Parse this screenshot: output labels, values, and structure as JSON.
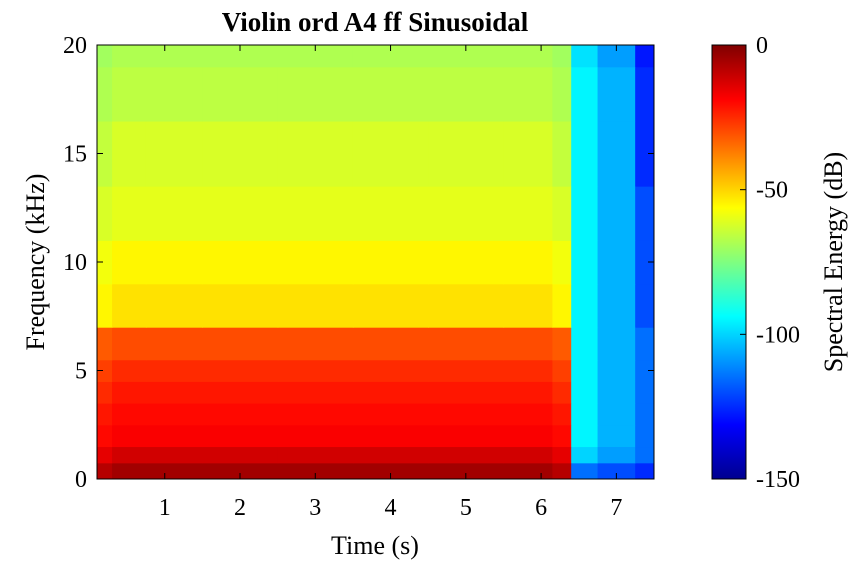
{
  "chart_data": {
    "type": "heatmap",
    "title": "Violin ord A4 ff Sinusoidal",
    "xlabel": "Time (s)",
    "ylabel": "Frequency (kHz)",
    "colorbar_label": "Spectral Energy (dB)",
    "colormap": "jet",
    "xlim": [
      0.1,
      7.5
    ],
    "ylim": [
      0,
      20
    ],
    "clim": [
      -150,
      0
    ],
    "x_ticks": [
      1,
      2,
      3,
      4,
      5,
      6,
      7
    ],
    "x_tick_labels": [
      "1",
      "2",
      "3",
      "4",
      "5",
      "6",
      "7"
    ],
    "y_ticks": [
      0,
      5,
      10,
      15,
      20
    ],
    "y_tick_labels": [
      "0",
      "5",
      "10",
      "15",
      "20"
    ],
    "c_ticks": [
      0,
      -50,
      -100,
      -150
    ],
    "c_tick_labels": [
      "0",
      "-50",
      "-100",
      "-150"
    ],
    "grid": false,
    "time_s": [
      0.1,
      0.5,
      1.0,
      2.0,
      3.0,
      4.0,
      5.0,
      6.0,
      6.3,
      6.5,
      7.0,
      7.5
    ],
    "frequency_khz": [
      0.5,
      1,
      2,
      3,
      4,
      5,
      6,
      8,
      10,
      12,
      15,
      18,
      20
    ],
    "energy_db": [
      [
        -8,
        -5,
        -5,
        -5,
        -5,
        -5,
        -5,
        -5,
        -8,
        -115,
        -120,
        -125
      ],
      [
        -15,
        -12,
        -12,
        -12,
        -12,
        -12,
        -12,
        -12,
        -15,
        -100,
        -108,
        -115
      ],
      [
        -20,
        -18,
        -18,
        -18,
        -18,
        -18,
        -18,
        -18,
        -20,
        -95,
        -105,
        -115
      ],
      [
        -22,
        -20,
        -20,
        -20,
        -20,
        -20,
        -20,
        -20,
        -22,
        -95,
        -105,
        -115
      ],
      [
        -25,
        -22,
        -22,
        -22,
        -22,
        -22,
        -22,
        -22,
        -25,
        -95,
        -105,
        -115
      ],
      [
        -28,
        -25,
        -25,
        -25,
        -25,
        -25,
        -25,
        -25,
        -28,
        -95,
        -105,
        -115
      ],
      [
        -32,
        -30,
        -30,
        -30,
        -30,
        -30,
        -30,
        -30,
        -32,
        -95,
        -105,
        -115
      ],
      [
        -55,
        -52,
        -52,
        -52,
        -52,
        -52,
        -52,
        -52,
        -55,
        -95,
        -105,
        -120
      ],
      [
        -58,
        -55,
        -55,
        -55,
        -55,
        -55,
        -55,
        -55,
        -58,
        -95,
        -105,
        -120
      ],
      [
        -62,
        -60,
        -60,
        -60,
        -60,
        -60,
        -60,
        -60,
        -62,
        -95,
        -105,
        -120
      ],
      [
        -65,
        -62,
        -62,
        -62,
        -62,
        -62,
        -62,
        -62,
        -65,
        -95,
        -105,
        -125
      ],
      [
        -68,
        -66,
        -66,
        -66,
        -66,
        -66,
        -66,
        -66,
        -68,
        -95,
        -105,
        -125
      ],
      [
        -70,
        -68,
        -68,
        -68,
        -68,
        -68,
        -68,
        -68,
        -70,
        -98,
        -108,
        -128
      ]
    ]
  }
}
